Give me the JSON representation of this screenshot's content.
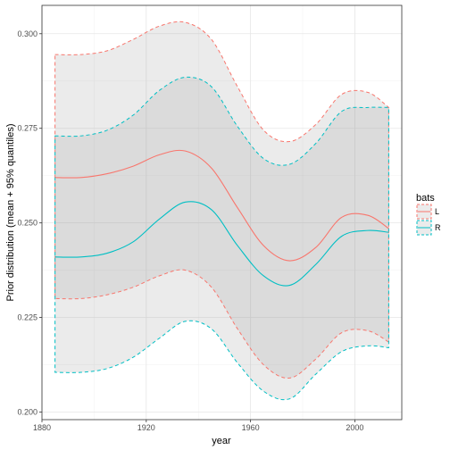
{
  "chart_data": {
    "type": "line",
    "xlabel": "year",
    "ylabel": "Prior distribution (mean + 95% quantiles)",
    "xlim": [
      1880,
      2018
    ],
    "ylim": [
      0.198,
      0.3075
    ],
    "x_ticks": [
      1880,
      1920,
      1960,
      2000
    ],
    "x_tick_labels": [
      "1880",
      "1920",
      "1960",
      "2000"
    ],
    "y_ticks": [
      0.2,
      0.225,
      0.25,
      0.275,
      0.3
    ],
    "y_tick_labels": [
      "0.200",
      "0.225",
      "0.250",
      "0.275",
      "0.300"
    ],
    "grid": true,
    "legend": {
      "title": "bats",
      "position": "right"
    },
    "series": [
      {
        "name": "L",
        "color": "#F8766D",
        "x": [
          1885,
          1895,
          1905,
          1915,
          1925,
          1935,
          1945,
          1955,
          1965,
          1975,
          1985,
          1995,
          2005,
          2013
        ],
        "mean": [
          0.262,
          0.262,
          0.263,
          0.265,
          0.268,
          0.269,
          0.2645,
          0.254,
          0.244,
          0.24,
          0.2435,
          0.2515,
          0.252,
          0.2485
        ],
        "lower": [
          0.23,
          0.23,
          0.231,
          0.233,
          0.236,
          0.2375,
          0.233,
          0.222,
          0.2125,
          0.209,
          0.214,
          0.221,
          0.2215,
          0.2185
        ],
        "upper": [
          0.2945,
          0.2945,
          0.2955,
          0.2985,
          0.302,
          0.303,
          0.2985,
          0.286,
          0.2745,
          0.2715,
          0.276,
          0.284,
          0.2845,
          0.2805
        ]
      },
      {
        "name": "R",
        "color": "#00BFC4",
        "x": [
          1885,
          1895,
          1905,
          1915,
          1925,
          1935,
          1945,
          1955,
          1965,
          1975,
          1985,
          1995,
          2005,
          2013
        ],
        "mean": [
          0.241,
          0.241,
          0.242,
          0.245,
          0.251,
          0.2555,
          0.2535,
          0.244,
          0.236,
          0.2335,
          0.239,
          0.2465,
          0.248,
          0.2475
        ],
        "lower": [
          0.2105,
          0.2105,
          0.2115,
          0.2145,
          0.2195,
          0.224,
          0.222,
          0.213,
          0.2055,
          0.2035,
          0.21,
          0.216,
          0.2175,
          0.217
        ],
        "upper": [
          0.273,
          0.273,
          0.2745,
          0.2785,
          0.285,
          0.2885,
          0.286,
          0.2755,
          0.267,
          0.2655,
          0.271,
          0.2795,
          0.2805,
          0.2805
        ]
      }
    ]
  }
}
